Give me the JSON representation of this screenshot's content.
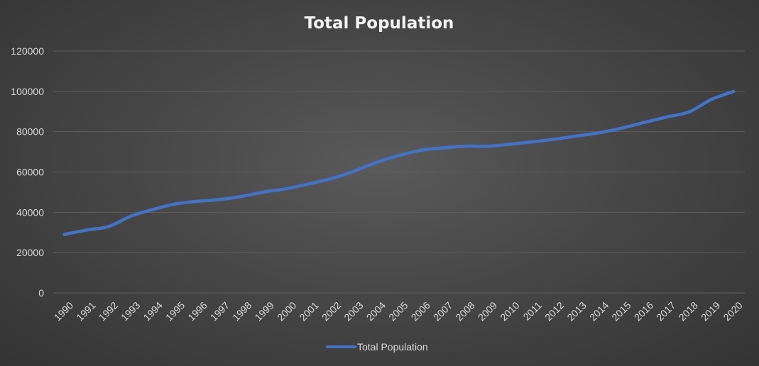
{
  "chart_data": {
    "type": "line",
    "title": "Total Population",
    "xlabel": "",
    "ylabel": "",
    "ylim": [
      0,
      120000
    ],
    "yticks": [
      "0",
      "20000",
      "40000",
      "60000",
      "80000",
      "100000",
      "120000"
    ],
    "grid": true,
    "legend_position": "bottom",
    "categories": [
      "1990",
      "1991",
      "1992",
      "1993",
      "1994",
      "1995",
      "1996",
      "1997",
      "1998",
      "1999",
      "2000",
      "2001",
      "2002",
      "2003",
      "2004",
      "2005",
      "2006",
      "2007",
      "2008",
      "2009",
      "2010",
      "2011",
      "2012",
      "2013",
      "2014",
      "2015",
      "2016",
      "2017",
      "2018",
      "2019",
      "2020"
    ],
    "series": [
      {
        "name": "Total Population",
        "color": "#4472c4",
        "values": [
          29000,
          31200,
          33000,
          38200,
          41500,
          44200,
          45500,
          46400,
          48000,
          50200,
          51800,
          54200,
          56800,
          60500,
          64800,
          68200,
          70800,
          72000,
          72800,
          72800,
          73800,
          75000,
          76300,
          77900,
          79500,
          81800,
          84600,
          87300,
          89800,
          96000,
          100000
        ]
      }
    ]
  }
}
